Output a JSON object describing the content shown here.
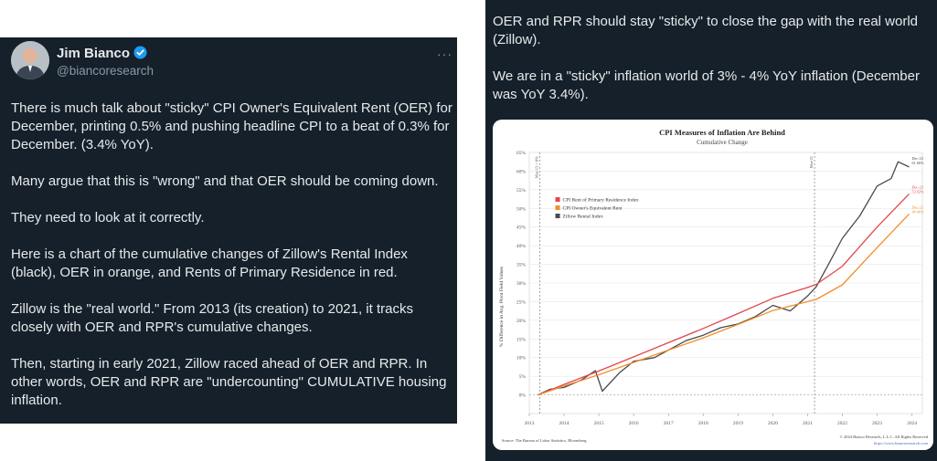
{
  "author": {
    "name": "Jim Bianco",
    "handle": "@biancoresearch"
  },
  "more_label": "···",
  "left_tweet": [
    "There is much talk about \"sticky\" CPI Owner's Equivalent Rent (OER) for December, printing 0.5% and pushing headline CPI to a beat of 0.3% for December. (3.4% YoY).",
    "Many argue that this is \"wrong\" and that OER should be coming down.",
    "They need to look at it correctly.",
    "Here is a chart of the cumulative changes of Zillow's Rental Index (black), OER in orange, and Rents of Primary Residence in red.",
    "Zillow is the \"real world.\" From 2013 (its creation) to 2021, it tracks closely with OER and RPR's cumulative changes.",
    "Then, starting in early 2021, Zillow raced ahead of OER and RPR. In other words, OER and RPR are \"undercounting\" CUMULATIVE housing inflation."
  ],
  "right_tweet": [
    "OER and RPR should stay \"sticky\" to close the gap with the real world (Zillow).",
    "We are in a \"sticky\" inflation world of 3% - 4% YoY inflation (December was YoY 3.4%)."
  ],
  "colors": {
    "bg": "#15202b",
    "text": "#e7e9ea",
    "muted": "#8b98a5",
    "verified": "#1d9bf0",
    "rpr": "#e0474c",
    "oer": "#f28e2b",
    "zillow": "#4a4a4a"
  },
  "chart_data": {
    "type": "line",
    "title": "CPI Measures of Inflation Are Behind",
    "subtitle": "Cumulative Change",
    "ylabel": "% Difference in Avg. Pivot Field Values",
    "source": "Source: The Bureau of Labor Statistics, Bloomberg",
    "copyright": "© 2024 Bianco Research, L.L.C. All Rights Reserved",
    "url": "https://www.biancoresearch.com",
    "ylim": [
      -5,
      65
    ],
    "xlim": [
      2013.0,
      2024.3
    ],
    "yticks": [
      0,
      5,
      10,
      15,
      20,
      25,
      30,
      35,
      40,
      45,
      50,
      55,
      60,
      65
    ],
    "ytick_labels": [
      "0%",
      "5%",
      "10%",
      "15%",
      "20%",
      "25%",
      "30%",
      "35%",
      "40%",
      "45%",
      "50%",
      "55%",
      "60%",
      "65%"
    ],
    "xticks": [
      2013,
      2014,
      2015,
      2016,
      2017,
      2018,
      2019,
      2020,
      2021,
      2022,
      2023,
      2024
    ],
    "xtick_labels": [
      "2013",
      "2014",
      "2015",
      "2016",
      "2017",
      "2018",
      "2019",
      "2020",
      "2021",
      "2022",
      "2023",
      "2024"
    ],
    "annotations": [
      {
        "x": 2013.3,
        "label": "Mar-13 = 0%"
      },
      {
        "x": 2021.2,
        "label": "Mar-21"
      }
    ],
    "end_labels": [
      {
        "series": "Zillow Rental Index",
        "label": "Dec-23",
        "value_label": "61.06%"
      },
      {
        "series": "CPI Rent of Primary Residence Index",
        "label": "Dec-23",
        "value_label": "53.92%"
      },
      {
        "series": "CPI Owner's Equivalent Rent",
        "label": "Dec-23",
        "value_label": "48.46%"
      }
    ],
    "legend": "top-left",
    "series": [
      {
        "name": "CPI Rent of Primary Residence Index",
        "color": "#e0474c",
        "x": [
          2013.25,
          2014,
          2015,
          2016,
          2017,
          2018,
          2019,
          2020,
          2021,
          2021.25,
          2022,
          2023,
          2023.92
        ],
        "values": [
          0,
          2.8,
          6.4,
          10.2,
          14.0,
          17.8,
          21.8,
          25.9,
          28.8,
          29.6,
          34.5,
          45.0,
          53.9
        ]
      },
      {
        "name": "CPI Owner's Equivalent Rent",
        "color": "#f28e2b",
        "x": [
          2013.25,
          2014,
          2015,
          2016,
          2017,
          2018,
          2019,
          2020,
          2021,
          2021.25,
          2022,
          2023,
          2023.92
        ],
        "values": [
          0,
          2.4,
          5.4,
          8.7,
          12.0,
          15.3,
          18.9,
          22.6,
          25.0,
          25.6,
          29.5,
          39.5,
          48.5
        ]
      },
      {
        "name": "Zillow Rental Index",
        "color": "#4a4a4a",
        "x": [
          2013.25,
          2013.6,
          2014,
          2014.5,
          2014.9,
          2015.1,
          2015.6,
          2016,
          2016.6,
          2017,
          2017.5,
          2018,
          2018.5,
          2019,
          2019.5,
          2020,
          2020.5,
          2021,
          2021.25,
          2021.6,
          2022,
          2022.5,
          2023,
          2023.4,
          2023.6,
          2023.92
        ],
        "values": [
          0,
          1.5,
          2.0,
          4.0,
          6.5,
          1.0,
          6.0,
          9.0,
          10.0,
          12.0,
          14.5,
          16.0,
          18.0,
          19.0,
          21.0,
          24.0,
          22.5,
          26.5,
          29.0,
          35.0,
          42.0,
          48.0,
          56.0,
          58.0,
          62.5,
          61.1
        ]
      }
    ]
  }
}
